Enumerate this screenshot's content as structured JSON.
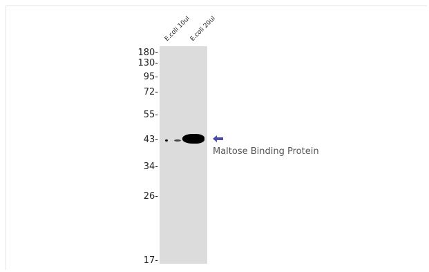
{
  "lanes": [
    {
      "label": "E.coli 10ul"
    },
    {
      "label": "E.coli 20ul"
    }
  ],
  "markers": [
    "180-",
    "130-",
    "95-",
    "72-",
    "55-",
    "43-",
    "34-",
    "26-",
    "17-"
  ],
  "target": {
    "label": "Maltose Binding Protein",
    "arrow_color": "#4a4aa8"
  },
  "colors": {
    "membrane": "#dcdcdc",
    "band": "#000000"
  }
}
